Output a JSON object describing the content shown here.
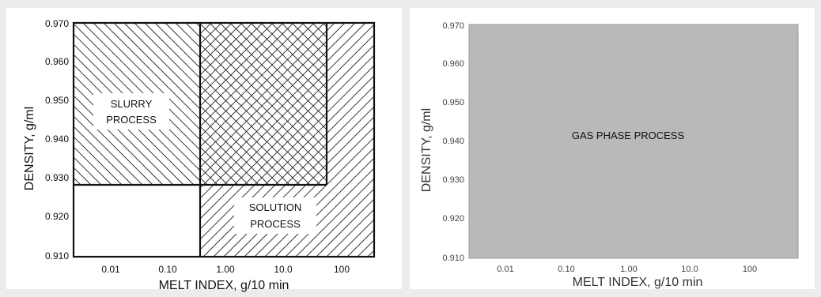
{
  "panels": [
    {
      "id": "left",
      "y_ticks": [
        "0.970",
        "0.960",
        "0.950",
        "0.940",
        "0.930",
        "0.920",
        "0.910"
      ],
      "x_ticks": [
        "0.01",
        "0.10",
        "1.00",
        "10.0",
        "100"
      ],
      "xlabel": "MELT INDEX, g/10 min",
      "ylabel": "DENSITY, g/ml",
      "regions": [
        {
          "lines": [
            "SLURRY",
            "PROCESS"
          ]
        },
        {
          "lines": [
            "SOLUTION",
            "PROCESS"
          ]
        }
      ]
    },
    {
      "id": "right",
      "y_ticks": [
        "0.970",
        "0.960",
        "0.950",
        "0.940",
        "0.930",
        "0.920",
        "0.910"
      ],
      "x_ticks": [
        "0.01",
        "0.10",
        "1.00",
        "10.0",
        "100"
      ],
      "xlabel": "MELT INDEX, g/10 min",
      "ylabel": "DENSITY, g/ml",
      "regions": [
        {
          "lines": [
            "GAS PHASE PROCESS"
          ]
        }
      ]
    }
  ],
  "colors": {
    "background": "#ececec",
    "panel": "#ffffff",
    "gas_fill": "#b9b9b9",
    "line": "#111111"
  }
}
